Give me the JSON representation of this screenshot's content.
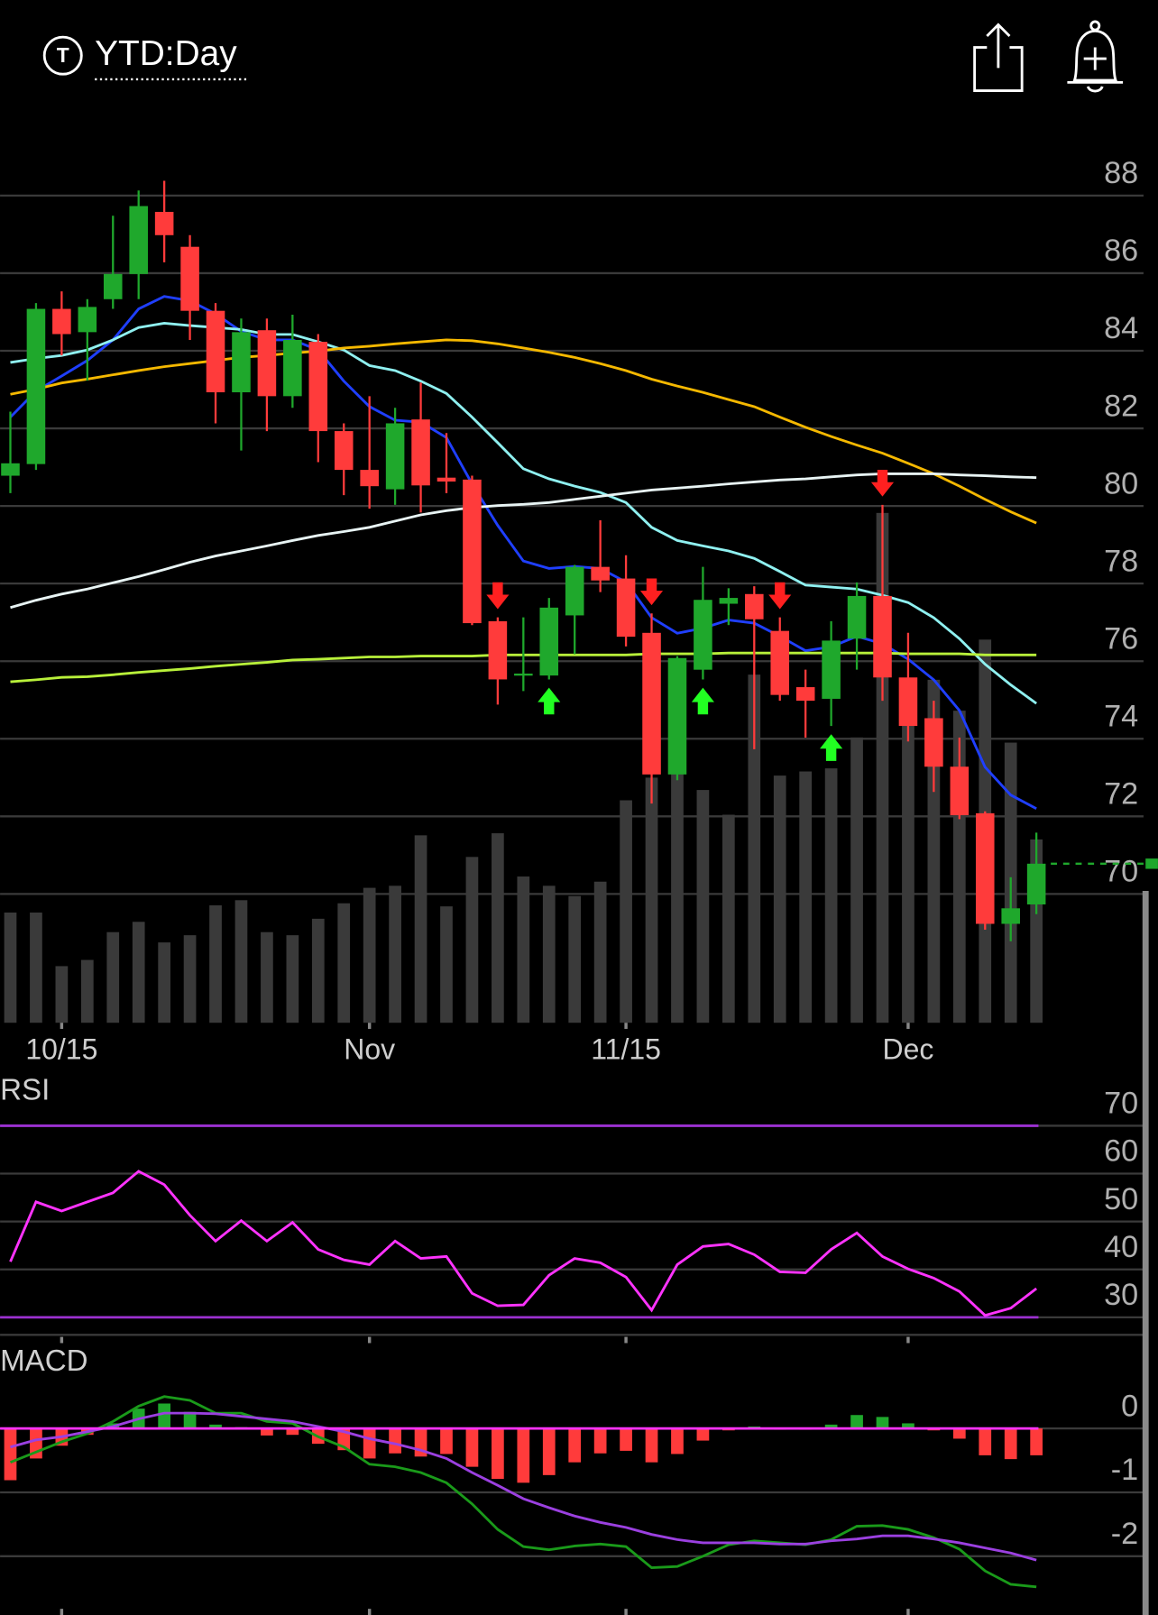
{
  "header": {
    "icon_letter": "T",
    "title": "YTD:Day"
  },
  "chart_data": [
    {
      "type": "candlestick",
      "categories": [
        null,
        null,
        "10/15",
        null,
        null,
        null,
        null,
        null,
        null,
        null,
        null,
        null,
        null,
        null,
        "Nov",
        null,
        null,
        null,
        null,
        null,
        null,
        null,
        null,
        null,
        "11/15",
        null,
        null,
        null,
        null,
        null,
        null,
        null,
        null,
        null,
        null,
        "Dec",
        null,
        null,
        null,
        null,
        null
      ],
      "open": [
        80.78,
        81.08,
        85.08,
        84.48,
        85.33,
        85.98,
        87.58,
        86.68,
        85.03,
        82.93,
        84.53,
        82.83,
        84.23,
        81.93,
        80.93,
        80.43,
        82.23,
        80.73,
        80.68,
        77.03,
        75.63,
        75.63,
        77.18,
        78.43,
        78.13,
        76.73,
        73.08,
        75.78,
        77.48,
        77.73,
        76.78,
        75.33,
        75.03,
        76.58,
        77.68,
        75.58,
        74.53,
        73.28,
        72.08,
        69.23,
        69.73
      ],
      "high": [
        82.43,
        85.23,
        85.53,
        85.33,
        87.48,
        88.13,
        88.38,
        86.98,
        85.23,
        84.83,
        84.83,
        84.93,
        84.43,
        82.13,
        82.83,
        82.53,
        83.18,
        81.88,
        80.78,
        77.13,
        77.13,
        77.63,
        78.48,
        79.63,
        78.73,
        77.23,
        76.13,
        78.43,
        77.88,
        77.93,
        77.13,
        75.78,
        77.03,
        78.03,
        80.03,
        76.73,
        74.98,
        74.03,
        72.13,
        70.43,
        71.58
      ],
      "low": [
        80.33,
        80.93,
        83.88,
        83.23,
        85.08,
        85.33,
        86.28,
        84.28,
        82.13,
        81.43,
        81.93,
        82.53,
        81.13,
        80.28,
        79.93,
        80.03,
        79.83,
        80.33,
        76.93,
        74.88,
        75.23,
        75.53,
        76.18,
        77.78,
        76.38,
        72.33,
        72.93,
        75.53,
        76.93,
        73.73,
        74.98,
        74.03,
        74.33,
        75.78,
        74.98,
        73.93,
        72.63,
        71.93,
        69.08,
        68.78,
        69.48
      ],
      "close": [
        81.1,
        85.08,
        84.43,
        85.13,
        85.98,
        87.73,
        86.98,
        85.03,
        82.93,
        84.48,
        82.83,
        84.28,
        81.93,
        80.93,
        80.51,
        82.13,
        80.53,
        80.63,
        76.98,
        75.53,
        75.68,
        77.38,
        78.43,
        78.08,
        76.63,
        73.08,
        76.08,
        77.58,
        77.63,
        77.08,
        75.13,
        74.98,
        76.53,
        77.68,
        75.58,
        74.33,
        73.28,
        72.03,
        69.23,
        69.63,
        70.78
      ],
      "up_color": "#1fa82c",
      "down_color": "#ff3b3b",
      "ylim": [
        66.68,
        89.59
      ],
      "yticks": [
        70,
        72,
        74,
        76,
        78,
        80,
        82,
        84,
        86,
        88
      ],
      "grid": true,
      "overlays": [
        {
          "color": "#1f3fff",
          "values": [
            82.29,
            82.96,
            83.35,
            83.75,
            84.28,
            85.08,
            85.4,
            85.29,
            84.95,
            84.5,
            84.28,
            84.28,
            84.02,
            83.22,
            82.56,
            82.21,
            82.16,
            81.76,
            80.57,
            79.5,
            78.58,
            78.39,
            78.44,
            78.39,
            78.04,
            77.12,
            76.72,
            76.85,
            77.06,
            76.98,
            76.64,
            76.27,
            76.37,
            76.64,
            76.45,
            76.05,
            75.52,
            74.73,
            73.27,
            72.55,
            72.2
          ]
        },
        {
          "color": "#8ff0f0",
          "values": [
            83.7,
            83.8,
            83.88,
            84.02,
            84.28,
            84.6,
            84.71,
            84.65,
            84.6,
            84.55,
            84.42,
            84.42,
            84.23,
            84.02,
            83.62,
            83.49,
            83.22,
            82.9,
            82.29,
            81.63,
            80.96,
            80.7,
            80.51,
            80.35,
            80.09,
            79.45,
            79.11,
            78.97,
            78.84,
            78.65,
            78.31,
            77.96,
            77.91,
            77.86,
            77.7,
            77.51,
            77.12,
            76.58,
            75.92,
            75.39,
            74.91
          ]
        },
        {
          "color": "#f5b800",
          "values": [
            82.88,
            83.01,
            83.17,
            83.27,
            83.38,
            83.49,
            83.59,
            83.67,
            83.75,
            83.83,
            83.88,
            83.94,
            83.99,
            84.07,
            84.12,
            84.18,
            84.23,
            84.28,
            84.26,
            84.18,
            84.07,
            83.96,
            83.83,
            83.67,
            83.49,
            83.27,
            83.09,
            82.93,
            82.74,
            82.56,
            82.29,
            82.03,
            81.79,
            81.57,
            81.36,
            81.1,
            80.83,
            80.51,
            80.17,
            79.85,
            79.56
          ]
        },
        {
          "color": "#e8f4f4",
          "values": [
            77.38,
            77.57,
            77.73,
            77.86,
            78.02,
            78.18,
            78.36,
            78.55,
            78.71,
            78.84,
            78.97,
            79.11,
            79.24,
            79.34,
            79.45,
            79.61,
            79.77,
            79.88,
            79.96,
            80.01,
            80.04,
            80.09,
            80.17,
            80.25,
            80.33,
            80.41,
            80.46,
            80.51,
            80.57,
            80.62,
            80.67,
            80.7,
            80.75,
            80.8,
            80.83,
            80.83,
            80.83,
            80.8,
            80.78,
            80.75,
            80.73
          ]
        },
        {
          "color": "#b8f03a",
          "values": [
            75.47,
            75.52,
            75.58,
            75.6,
            75.65,
            75.71,
            75.76,
            75.81,
            75.87,
            75.92,
            75.97,
            76.03,
            76.05,
            76.08,
            76.11,
            76.11,
            76.13,
            76.13,
            76.13,
            76.16,
            76.16,
            76.16,
            76.16,
            76.16,
            76.16,
            76.19,
            76.19,
            76.19,
            76.21,
            76.21,
            76.21,
            76.21,
            76.21,
            76.21,
            76.21,
            76.19,
            76.19,
            76.19,
            76.16,
            76.16,
            76.16
          ]
        }
      ],
      "volume": {
        "color": "#3a3a3a",
        "values": [
          107,
          107,
          55,
          61,
          88,
          98,
          78,
          85,
          114,
          119,
          88,
          85,
          101,
          116,
          131,
          133,
          182,
          113,
          161,
          184,
          142,
          133,
          123,
          137,
          216,
          238,
          253,
          226,
          202,
          338,
          240,
          244,
          247,
          277,
          495,
          303,
          333,
          303,
          372,
          272,
          178
        ]
      },
      "sell_signals": [
        19,
        25,
        30,
        34
      ],
      "sell_color": "#ff2020",
      "buy_signals": [
        21,
        27,
        32
      ],
      "buy_color": "#22ff22"
    },
    {
      "type": "line",
      "title": "RSI",
      "series": [
        {
          "color": "#ff33ff",
          "values": [
            41.6,
            54.1,
            52.2,
            54.1,
            56.0,
            60.5,
            57.7,
            51.3,
            45.9,
            50.2,
            45.9,
            49.8,
            44.2,
            42.0,
            41.0,
            45.9,
            42.3,
            42.7,
            35.0,
            32.4,
            32.6,
            38.8,
            42.3,
            41.4,
            38.4,
            31.5,
            41.0,
            44.8,
            45.3,
            43.1,
            39.5,
            39.3,
            44.2,
            47.6,
            42.7,
            40.1,
            38.2,
            35.4,
            30.4,
            31.9,
            36.0
          ]
        }
      ],
      "ylim": [
        25.91,
        80.32
      ],
      "yticks": [
        30,
        40,
        50,
        60,
        70
      ],
      "grid": true,
      "bands": [
        70,
        30
      ],
      "band_color": "#9b30d0"
    },
    {
      "type": "macd",
      "title": "MACD",
      "series": [
        {
          "color": "#1a9a1a",
          "values": [
            -0.53,
            -0.37,
            -0.21,
            -0.08,
            0.11,
            0.35,
            0.5,
            0.44,
            0.24,
            0.24,
            0.11,
            0.08,
            -0.13,
            -0.29,
            -0.56,
            -0.6,
            -0.69,
            -0.85,
            -1.18,
            -1.58,
            -1.85,
            -1.9,
            -1.84,
            -1.81,
            -1.85,
            -2.18,
            -2.16,
            -2.0,
            -1.82,
            -1.76,
            -1.79,
            -1.82,
            -1.74,
            -1.53,
            -1.52,
            -1.58,
            -1.71,
            -1.89,
            -2.23,
            -2.44,
            -2.48
          ]
        },
        {
          "color": "#9b40e0",
          "values": [
            -0.29,
            -0.18,
            -0.13,
            -0.05,
            0.03,
            0.15,
            0.24,
            0.24,
            0.23,
            0.19,
            0.15,
            0.11,
            0.03,
            -0.05,
            -0.16,
            -0.24,
            -0.34,
            -0.47,
            -0.69,
            -0.89,
            -1.1,
            -1.24,
            -1.37,
            -1.47,
            -1.55,
            -1.66,
            -1.74,
            -1.79,
            -1.79,
            -1.79,
            -1.81,
            -1.81,
            -1.76,
            -1.73,
            -1.68,
            -1.68,
            -1.73,
            -1.79,
            -1.87,
            -1.95,
            -2.06
          ]
        }
      ],
      "histogram": {
        "up_color": "#1fa82c",
        "down_color": "#ff3b3b",
        "values": [
          -0.81,
          -0.47,
          -0.27,
          -0.1,
          0.08,
          0.31,
          0.39,
          0.26,
          0.06,
          0.02,
          -0.11,
          -0.1,
          -0.24,
          -0.34,
          -0.47,
          -0.39,
          -0.44,
          -0.4,
          -0.6,
          -0.79,
          -0.85,
          -0.73,
          -0.53,
          -0.39,
          -0.35,
          -0.53,
          -0.4,
          -0.19,
          -0.03,
          0.03,
          -0.02,
          -0.02,
          0.06,
          0.21,
          0.18,
          0.08,
          -0.03,
          -0.16,
          -0.42,
          -0.48,
          -0.42
        ]
      },
      "ylim": [
        -2.92,
        1.32
      ],
      "yticks": [
        0,
        -1,
        -2
      ],
      "grid": true,
      "zero_line_color": "#ff33ff"
    }
  ]
}
